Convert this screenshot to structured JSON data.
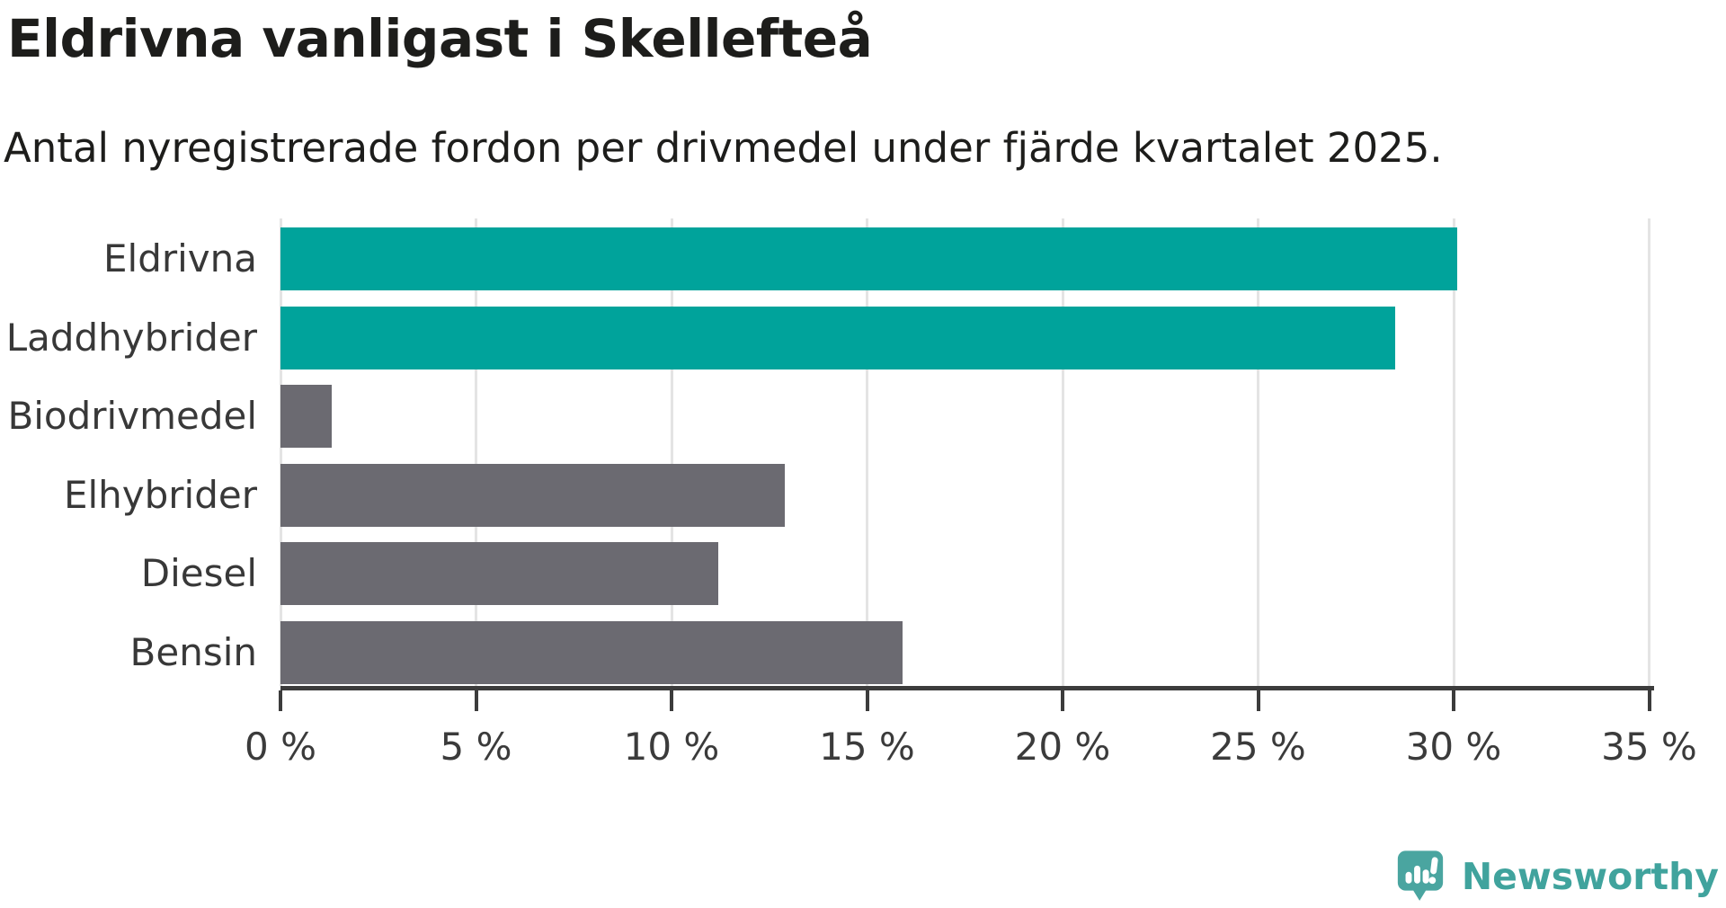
{
  "header": {
    "title": "Eldrivna vanligast i Skellefteå",
    "subtitle": "Antal nyregistrerade fordon per drivmedel under fjärde kvartalet 2025."
  },
  "chart_data": {
    "type": "bar",
    "orientation": "horizontal",
    "title": "Eldrivna vanligast i Skellefteå",
    "subtitle": "Antal nyregistrerade fordon per drivmedel under fjärde kvartalet 2025.",
    "categories": [
      "Eldrivna",
      "Laddhybrider",
      "Biodrivmedel",
      "Elhybrider",
      "Diesel",
      "Bensin"
    ],
    "values": [
      30.1,
      28.5,
      1.3,
      12.9,
      11.2,
      15.9
    ],
    "unit": "%",
    "highlighted": [
      true,
      true,
      false,
      false,
      false,
      false
    ],
    "xlim": [
      0,
      35
    ],
    "xticks": [
      0,
      5,
      10,
      15,
      20,
      25,
      30,
      35
    ],
    "xtick_labels": [
      "0 %",
      "5 %",
      "10 %",
      "15 %",
      "20 %",
      "25 %",
      "30 %",
      "35 %"
    ],
    "grid": "vertical",
    "legend": "none",
    "xlabel": "",
    "ylabel": ""
  },
  "colors": {
    "bar_highlight": "#00a39b",
    "bar_default": "#6b6a71",
    "gridline": "#e4e4e4",
    "axis": "#3c3c3c",
    "text": "#1d1d1b",
    "brand_teal": "#40a39d",
    "brand_bubble": "#4aa5a0"
  },
  "footer": {
    "brand": "Newsworthy"
  }
}
